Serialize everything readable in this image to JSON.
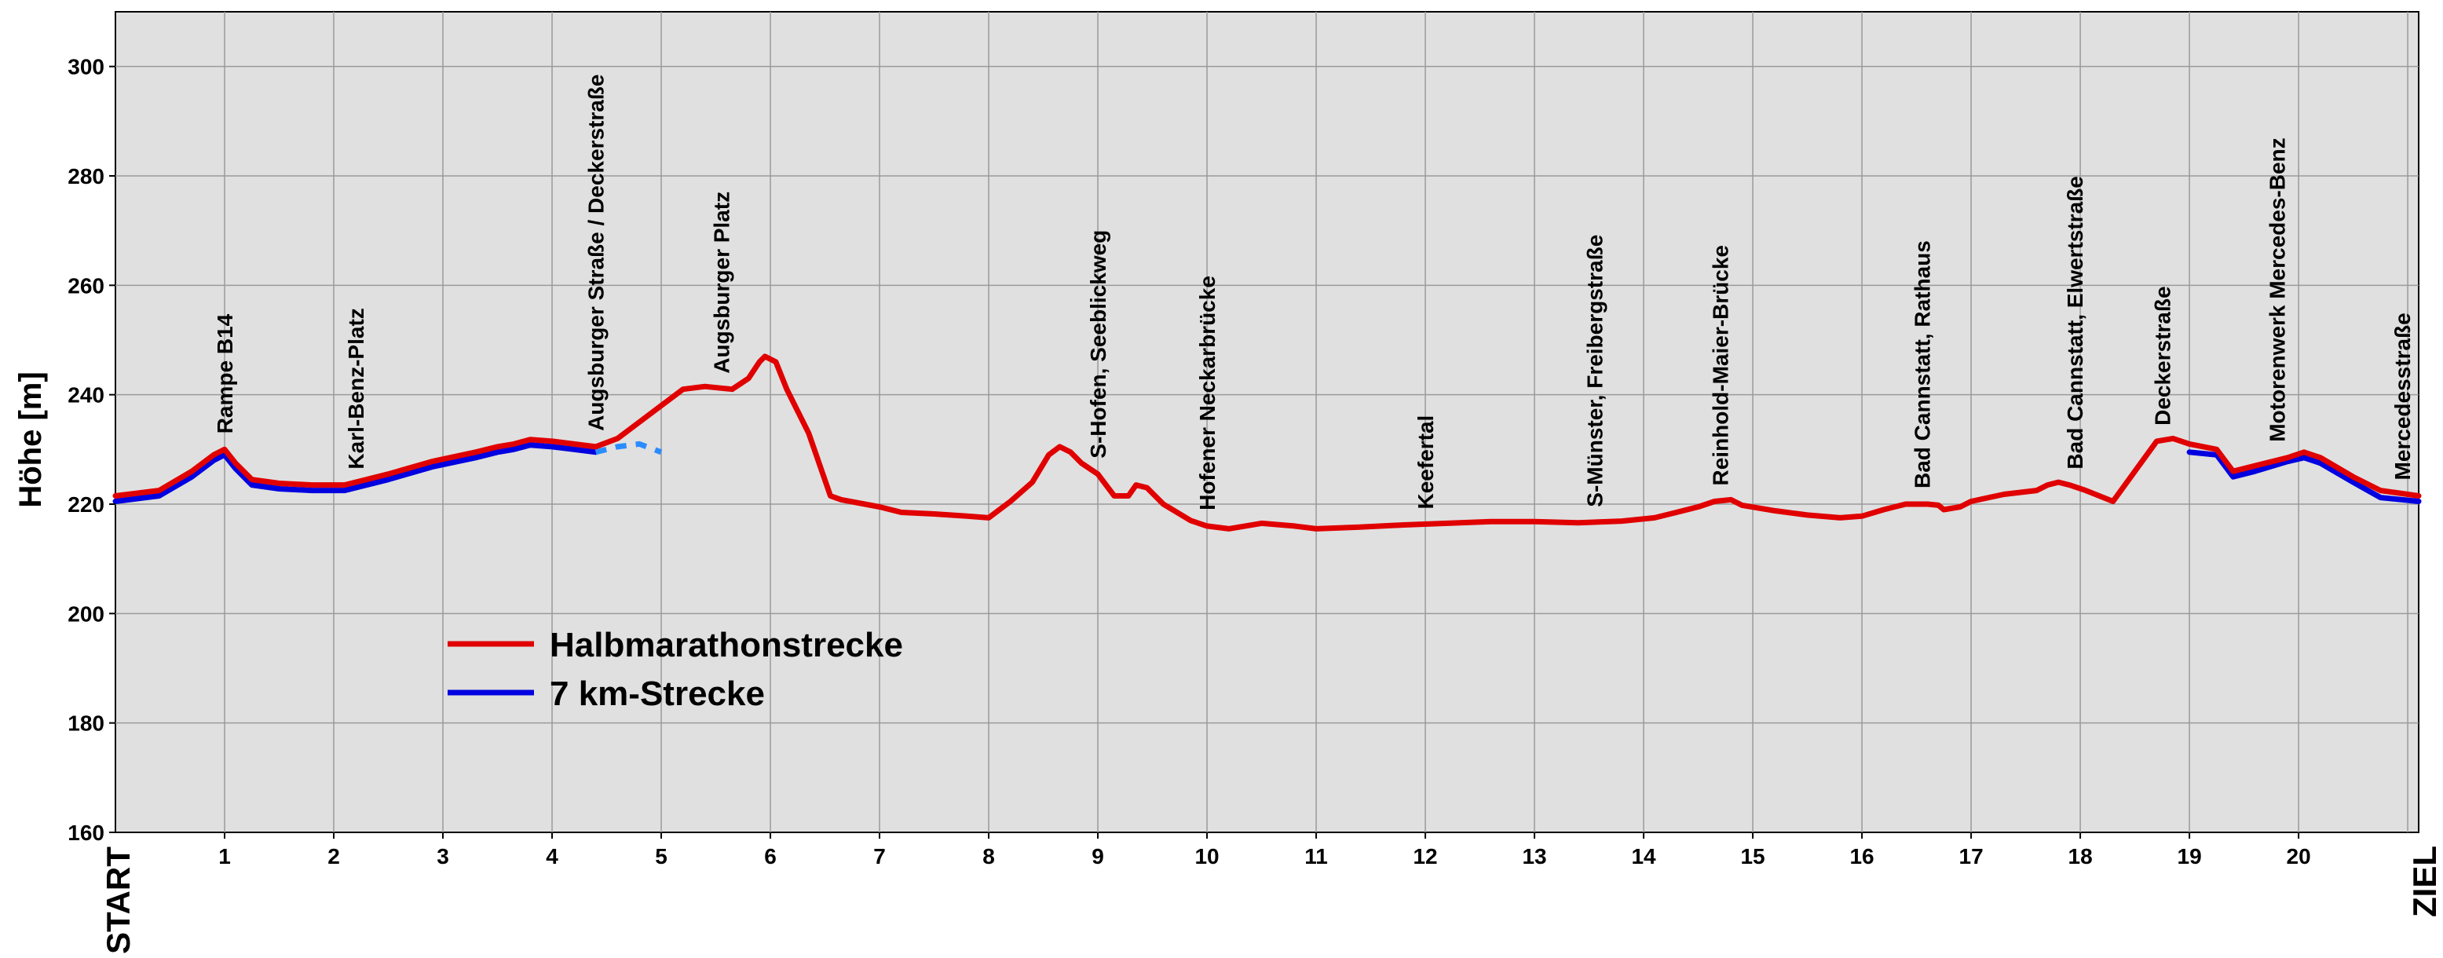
{
  "chart_data": {
    "type": "line",
    "title": "",
    "xlabel": "",
    "ylabel": "Höhe [m]",
    "xlim": [
      0,
      21.1
    ],
    "ylim": [
      160,
      310
    ],
    "x_ticks": [
      1,
      2,
      3,
      4,
      5,
      6,
      7,
      8,
      9,
      10,
      11,
      12,
      13,
      14,
      15,
      16,
      17,
      18,
      19,
      20
    ],
    "y_ticks": [
      160,
      180,
      200,
      220,
      240,
      260,
      280,
      300
    ],
    "start_label": "START",
    "end_label": "ZIEL",
    "grid": true,
    "legend_position": "bottom-left",
    "series": [
      {
        "name": "Halbmarathonstrecke",
        "color": "#e00000",
        "x": [
          0,
          0.4,
          0.7,
          0.9,
          1.0,
          1.1,
          1.25,
          1.5,
          1.8,
          2.1,
          2.5,
          2.9,
          3.3,
          3.5,
          3.65,
          3.8,
          4.0,
          4.2,
          4.4,
          4.6,
          4.8,
          5.0,
          5.2,
          5.4,
          5.65,
          5.8,
          5.9,
          5.95,
          6.05,
          6.15,
          6.35,
          6.55,
          6.65,
          7.0,
          7.2,
          7.5,
          7.8,
          8.0,
          8.2,
          8.4,
          8.55,
          8.65,
          8.75,
          8.85,
          9.0,
          9.15,
          9.28,
          9.35,
          9.45,
          9.6,
          9.85,
          10.0,
          10.2,
          10.5,
          10.8,
          11.0,
          11.4,
          11.8,
          12.2,
          12.6,
          13.0,
          13.4,
          13.8,
          14.1,
          14.3,
          14.5,
          14.65,
          14.8,
          14.9,
          15.2,
          15.5,
          15.8,
          16.0,
          16.2,
          16.4,
          16.6,
          16.7,
          16.75,
          16.9,
          17.0,
          17.3,
          17.6,
          17.7,
          17.8,
          17.9,
          18.05,
          18.3,
          18.5,
          18.7,
          18.85,
          19.0,
          19.25,
          19.4,
          19.6,
          19.9,
          20.05,
          20.2,
          20.5,
          20.75,
          21.1
        ],
        "y": [
          221.5,
          222.5,
          226,
          229,
          230,
          227.5,
          224.5,
          223.8,
          223.5,
          223.5,
          225.5,
          227.8,
          229.5,
          230.5,
          231,
          231.8,
          231.5,
          231.0,
          230.5,
          232.0,
          235,
          238,
          241,
          241.5,
          241,
          243,
          246,
          247,
          246,
          241,
          233,
          221.5,
          220.8,
          219.5,
          218.5,
          218.2,
          217.8,
          217.5,
          220.5,
          224,
          229,
          230.5,
          229.5,
          227.5,
          225.5,
          221.5,
          221.5,
          223.5,
          223,
          220,
          217,
          216,
          215.5,
          216.5,
          216,
          215.5,
          215.8,
          216.2,
          216.5,
          216.8,
          216.8,
          216.6,
          216.9,
          217.5,
          218.5,
          219.5,
          220.5,
          220.8,
          219.8,
          218.8,
          218,
          217.5,
          217.8,
          219,
          220,
          220,
          219.8,
          219,
          219.5,
          220.5,
          221.8,
          222.5,
          223.5,
          224,
          223.5,
          222.5,
          220.5,
          226,
          231.5,
          232,
          231,
          230,
          226,
          227,
          228.5,
          229.5,
          228.5,
          225,
          222.5,
          221.5
        ],
        "dashed": false
      },
      {
        "name": "7 km-Strecke",
        "color": "#0000e0",
        "x": [
          0,
          0.4,
          0.7,
          0.9,
          1.0,
          1.1,
          1.25,
          1.5,
          1.8,
          2.1,
          2.5,
          2.9,
          3.3,
          3.5,
          3.65,
          3.8,
          4.0,
          4.2,
          4.4
        ],
        "y": [
          220.5,
          221.5,
          225,
          228,
          229,
          226.5,
          223.5,
          222.8,
          222.5,
          222.5,
          224.5,
          226.8,
          228.5,
          229.5,
          230,
          230.8,
          230.5,
          230.0,
          229.5
        ],
        "dashed": false
      },
      {
        "name": "7 km-Strecke",
        "color": "#2a8cff",
        "x": [
          4.4,
          4.6,
          4.8,
          5.0
        ],
        "y": [
          229.5,
          230.5,
          231.0,
          229.5
        ],
        "dashed": true
      },
      {
        "name": "7 km-Strecke",
        "color": "#0000e0",
        "x": [
          19.0,
          19.25,
          19.4,
          19.6,
          19.9,
          20.05,
          20.2,
          20.5,
          20.75,
          21.1
        ],
        "y": [
          229.5,
          229,
          225,
          226,
          227.8,
          228.5,
          227.5,
          224,
          221.2,
          220.5
        ],
        "dashed": false
      }
    ],
    "annotations": [
      {
        "x": 1.0,
        "text": "Rampe B14"
      },
      {
        "x": 2.2,
        "text": "Karl-Benz-Platz"
      },
      {
        "x": 4.4,
        "text": "Augsburger Straße / Deckerstraße"
      },
      {
        "x": 5.55,
        "text": "Augsburger Platz"
      },
      {
        "x": 9.0,
        "text": "S-Hofen, Seeblickweg"
      },
      {
        "x": 10.0,
        "text": "Hofener Neckarbrücke"
      },
      {
        "x": 12.0,
        "text": "Keefertal"
      },
      {
        "x": 13.55,
        "text": "S-Münster, Freibergstraße"
      },
      {
        "x": 14.7,
        "text": "Reinhold-Maier-Brücke"
      },
      {
        "x": 16.55,
        "text": "Bad Cannstatt, Rathaus"
      },
      {
        "x": 17.95,
        "text": "Bad Cannstatt, Elwertstraße"
      },
      {
        "x": 18.75,
        "text": "Deckerstraße"
      },
      {
        "x": 19.8,
        "text": "Motorenwerk Mercedes-Benz"
      },
      {
        "x": 20.95,
        "text": "Mercedesstraße"
      }
    ],
    "legend": [
      {
        "label": "Halbmarathonstrecke",
        "color": "#e00000"
      },
      {
        "label": "7 km-Strecke",
        "color": "#0000e0"
      }
    ]
  }
}
